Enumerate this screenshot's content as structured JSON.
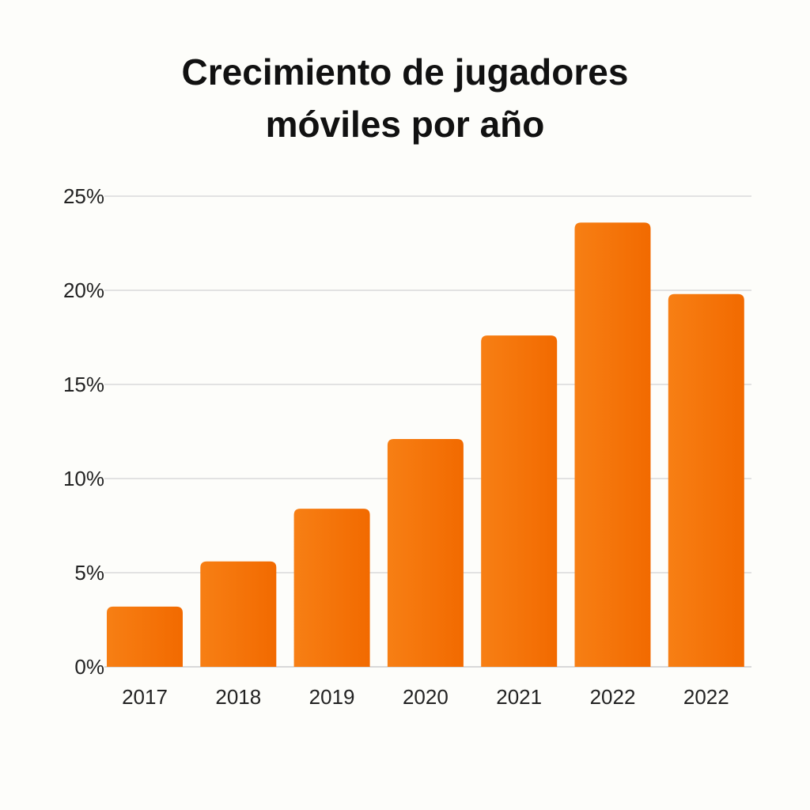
{
  "title_lines": [
    "Crecimiento de jugadores",
    "móviles por año"
  ],
  "chart_data": {
    "type": "bar",
    "title": "Crecimiento de jugadores móviles por año",
    "xlabel": "",
    "ylabel": "",
    "categories": [
      "2017",
      "2018",
      "2019",
      "2020",
      "2021",
      "2022",
      "2022"
    ],
    "values": [
      3.2,
      5.6,
      8.4,
      12.1,
      17.6,
      23.6,
      19.8
    ],
    "ylim": [
      0,
      25
    ],
    "yticks": [
      0,
      5,
      10,
      15,
      20,
      25
    ],
    "ytick_labels": [
      "0%",
      "5%",
      "10%",
      "15%",
      "20%",
      "25%"
    ],
    "grid": true,
    "legend": "none",
    "colors": {
      "bar": "#f77a0c",
      "bar_dark": "#f06c00",
      "grid": "#d9d9d9",
      "axis": "#cccccc",
      "text": "#222222",
      "background": "#fdfdfa"
    }
  }
}
